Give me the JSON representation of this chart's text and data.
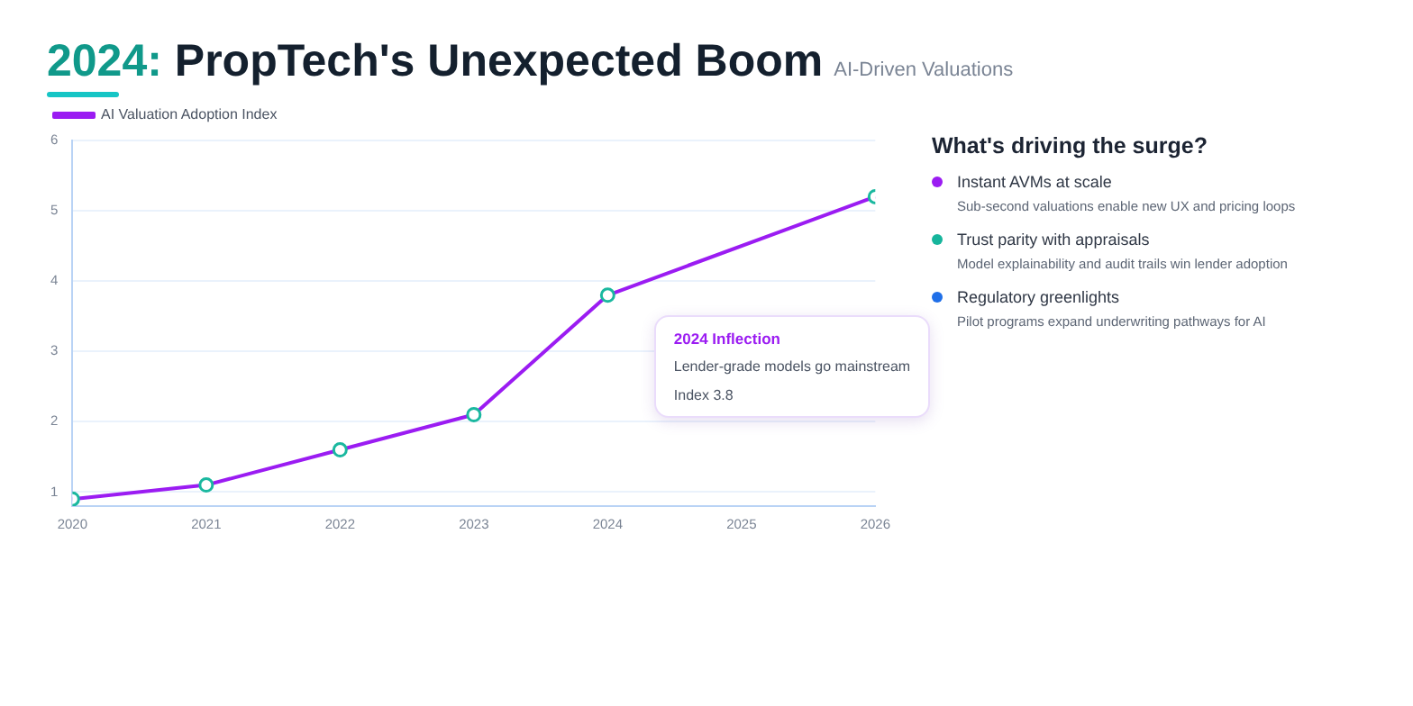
{
  "chart_data": [
    {
      "type": "line",
      "title": "2024: PropTech's Unexpected Boom",
      "subtitle": "AI-Driven Valuations",
      "x": [
        2020,
        2021,
        2022,
        2023,
        2024,
        2025,
        2026
      ],
      "series": [
        {
          "name": "AI Valuation Adoption Index",
          "color": "#9b1cf2",
          "values": [
            0.9,
            1.1,
            1.6,
            2.1,
            3.8,
            null,
            5.2
          ]
        }
      ],
      "xlim": [
        2020,
        2026
      ],
      "xticks": [
        2020,
        2021,
        2022,
        2023,
        2024,
        2025,
        2026
      ],
      "ylim": [
        0.8,
        6
      ],
      "yticks": [
        1,
        2,
        3,
        4,
        5,
        6
      ],
      "grid": "y",
      "legend": "top left",
      "marker": "circle",
      "line_style": "solid",
      "annotations": [
        "2024 Inflection",
        "Lender-grade models go mainstream",
        "Index 3.8"
      ]
    },
    {
      "type": "other",
      "title": "What's driving the surge?",
      "annotations": [
        "Instant AVMs at scale",
        "Sub-second valuations enable new UX and pricing loops",
        "Trust parity with appraisals",
        "Model explainability and audit trails win lender adoption",
        "Regulatory greenlights",
        "Pilot programs expand underwriting pathways for AI"
      ]
    }
  ]
}
